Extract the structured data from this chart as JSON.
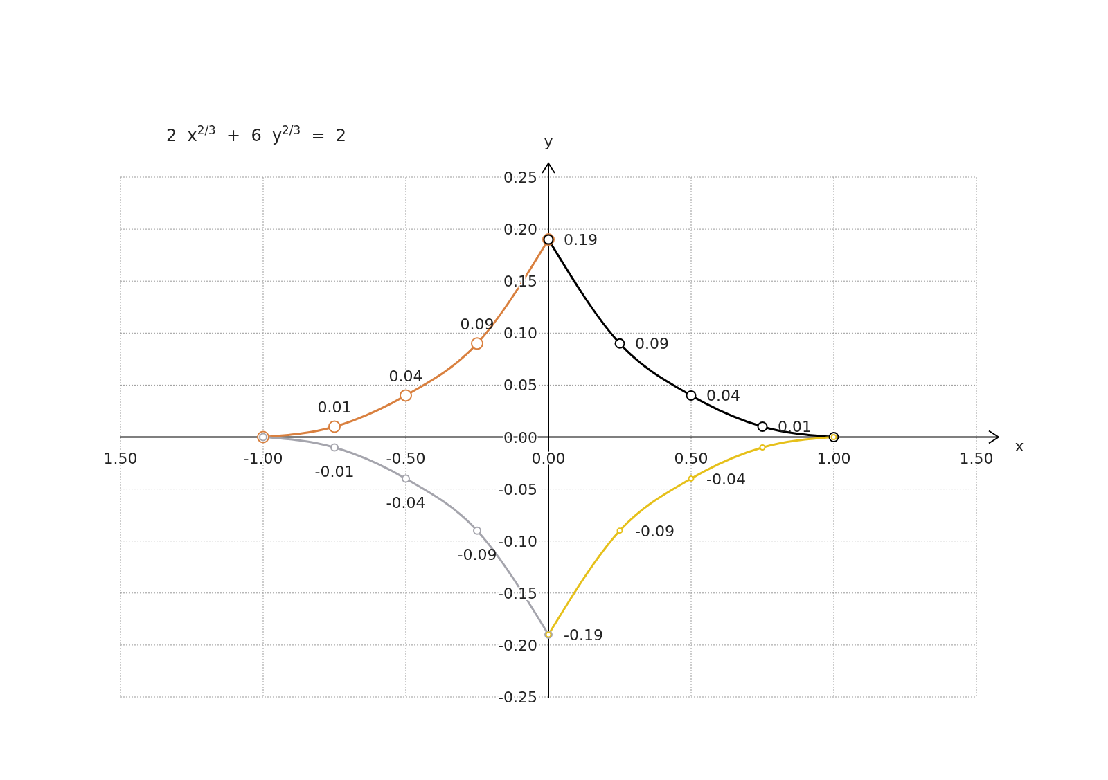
{
  "chart_data": {
    "type": "line",
    "title": "2  x$^{2/3}$  +  6  y$^{2/3}$  =  2",
    "xlabel": "x",
    "ylabel": "y",
    "xlim": [
      -1.5,
      1.5
    ],
    "ylim": [
      -0.25,
      0.25
    ],
    "xticks": [
      {
        "value": -1.5,
        "label": "1.50"
      },
      {
        "value": -1,
        "label": "-1.00"
      },
      {
        "value": -0.5,
        "label": "-0.50"
      },
      {
        "value": 0,
        "label": "0.00"
      },
      {
        "value": 0.5,
        "label": "0.50"
      },
      {
        "value": 1,
        "label": "1.00"
      },
      {
        "value": 1.5,
        "label": "1.50"
      }
    ],
    "yticks": [
      {
        "value": -0.25,
        "label": "-0.25"
      },
      {
        "value": -0.2,
        "label": "-0.20"
      },
      {
        "value": -0.15,
        "label": "-0.15"
      },
      {
        "value": -0.1,
        "label": "-0.10"
      },
      {
        "value": -0.05,
        "label": "-0.05"
      },
      {
        "value": 0,
        "label": "0.00"
      },
      {
        "value": 0.05,
        "label": "0.05"
      },
      {
        "value": 0.1,
        "label": "0.10"
      },
      {
        "value": 0.15,
        "label": "0.15"
      },
      {
        "value": 0.2,
        "label": "0.20"
      },
      {
        "value": 0.25,
        "label": "0.25"
      }
    ],
    "grid": true,
    "marker": "circle",
    "line_style": "solid",
    "series": [
      {
        "color": "#d9803f",
        "x": [
          -1,
          -0.75,
          -0.5,
          -0.25,
          0
        ],
        "values": [
          0,
          0.01,
          0.04,
          0.09,
          0.19
        ],
        "value_labels": [
          null,
          "0.01",
          "0.04",
          "0.09",
          null
        ]
      },
      {
        "color": "#000000",
        "x": [
          0,
          0.25,
          0.5,
          0.75,
          1
        ],
        "values": [
          0.19,
          0.09,
          0.04,
          0.01,
          0
        ],
        "value_labels": [
          "0.19",
          "0.09",
          "0.04",
          "0.01",
          null
        ]
      },
      {
        "color": "#a5a5ad",
        "x": [
          -1,
          -0.75,
          -0.5,
          -0.25,
          0
        ],
        "values": [
          0,
          -0.01,
          -0.04,
          -0.09,
          -0.19
        ],
        "value_labels": [
          null,
          "-0.01",
          "-0.04",
          "-0.09",
          null
        ]
      },
      {
        "color": "#e6c01a",
        "x": [
          0,
          0.25,
          0.5,
          0.75,
          1
        ],
        "values": [
          -0.19,
          -0.09,
          -0.04,
          -0.01,
          0
        ],
        "value_labels": [
          "-0.19",
          "-0.09",
          "-0.04",
          null,
          null
        ]
      }
    ]
  }
}
